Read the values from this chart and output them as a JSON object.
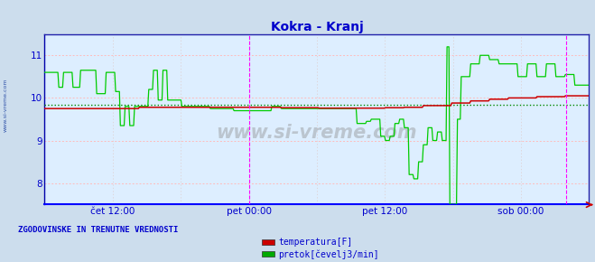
{
  "title": "Kokra - Kranj",
  "title_color": "#0000cc",
  "title_fontsize": 10,
  "bg_color": "#ccdded",
  "plot_bg_color": "#ddeeff",
  "axis_color": "#0000cc",
  "grid_color_h": "#ffbbbb",
  "grid_color_v": "#ddcccc",
  "ylim": [
    7.5,
    11.5
  ],
  "yticks": [
    8,
    9,
    10,
    11
  ],
  "xtick_labels": [
    "čet 12:00",
    "pet 00:00",
    "pet 12:00",
    "sob 00:00"
  ],
  "xtick_positions": [
    0.125,
    0.375,
    0.625,
    0.875
  ],
  "n": 576,
  "watermark": "www.si-vreme.com",
  "legend_title": "ZGODOVINSKE IN TRENUTNE VREDNOSTI",
  "legend_items": [
    "temperatura[F]",
    "pretok[čevelj3/min]"
  ],
  "legend_colors": [
    "#cc0000",
    "#00aa00"
  ],
  "avg_val": 9.84,
  "temp_line_color": "#cc0000",
  "flow_line_color": "#00cc00",
  "avg_line_color": "#008800",
  "vline_color": "#ff00ff",
  "vline_positions": [
    0.375,
    0.958
  ],
  "border_color": "#2222aa",
  "side_label": "www.si-vreme.com"
}
